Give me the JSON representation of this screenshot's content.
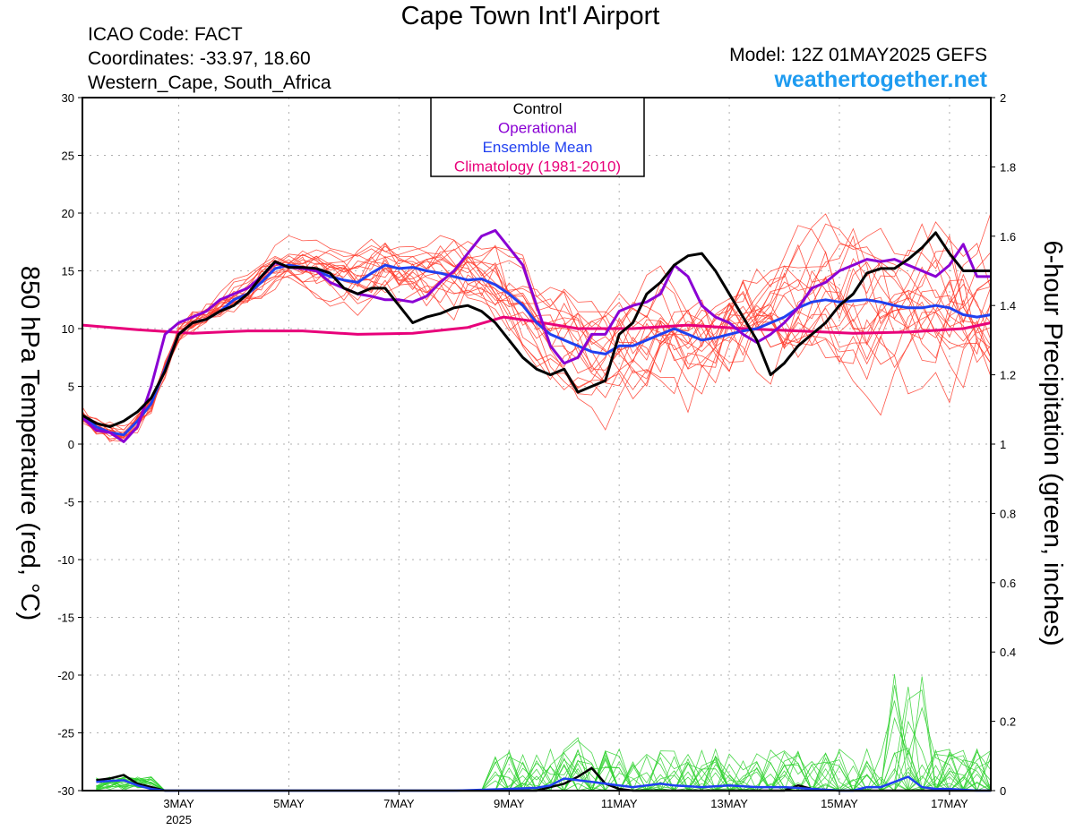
{
  "header": {
    "title": "Cape Town Int'l Airport",
    "icao": "ICAO Code: FACT",
    "coordinates": "Coordinates: -33.97, 18.60",
    "region": "Western_Cape, South_Africa",
    "model": "Model: 12Z 01MAY2025 GEFS",
    "website": "weathertogether.net"
  },
  "chart_data": {
    "type": "line",
    "ylabel": "850 hPa Temperature (red, °C)",
    "y2label": "6-hour Precipitation (green, inches)",
    "ylim": [
      -30,
      30
    ],
    "y2lim": [
      0,
      2
    ],
    "yticks": [
      "30",
      "25",
      "20",
      "15",
      "10",
      "5",
      "0",
      "-5",
      "-10",
      "-15",
      "-20",
      "-25",
      "-30"
    ],
    "y2ticks": [
      "2",
      "1.8",
      "1.6",
      "1.4",
      "1.2",
      "1",
      "0.8",
      "0.6",
      "0.4",
      "0.2",
      "0"
    ],
    "xlim": [
      1.25,
      17.75
    ],
    "xticks": [
      {
        "x": 3,
        "label": "3MAY",
        "sub": "2025"
      },
      {
        "x": 5,
        "label": "5MAY",
        "sub": ""
      },
      {
        "x": 7,
        "label": "7MAY",
        "sub": ""
      },
      {
        "x": 9,
        "label": "9MAY",
        "sub": ""
      },
      {
        "x": 11,
        "label": "11MAY",
        "sub": ""
      },
      {
        "x": 13,
        "label": "13MAY",
        "sub": ""
      },
      {
        "x": 15,
        "label": "15MAY",
        "sub": ""
      },
      {
        "x": 17,
        "label": "17MAY",
        "sub": ""
      }
    ],
    "grid": true,
    "legend": {
      "placement": "top-center",
      "entries": [
        {
          "label": "Control",
          "color": "#000000"
        },
        {
          "label": "Operational",
          "color": "#8a00d4"
        },
        {
          "label": "Ensemble Mean",
          "color": "#2040f0"
        },
        {
          "label": "Climatology (1981-2010)",
          "color": "#e8007a"
        }
      ]
    },
    "series": [
      {
        "name": "Climatology (1981-2010)",
        "color": "#e8007a",
        "axis": "temp",
        "x": [
          1.25,
          2.25,
          3.25,
          4.25,
          5.25,
          6.25,
          7.25,
          8.25,
          8.9,
          9.5,
          10.25,
          11.25,
          12.25,
          13.25,
          14.25,
          15.25,
          16.25,
          17.25,
          17.75
        ],
        "values": [
          10.3,
          9.9,
          9.6,
          9.8,
          9.8,
          9.5,
          9.6,
          10.1,
          11.0,
          10.6,
          10.0,
          10.0,
          10.3,
          10.0,
          9.8,
          9.6,
          9.7,
          10.0,
          10.5
        ]
      },
      {
        "name": "Ensemble Mean",
        "color": "#2040f0",
        "axis": "temp",
        "x": [
          1.25,
          1.5,
          1.75,
          2.0,
          2.25,
          2.5,
          2.75,
          3.0,
          3.25,
          3.5,
          3.75,
          4.0,
          4.25,
          4.5,
          4.75,
          5.0,
          5.25,
          5.5,
          5.75,
          6.0,
          6.25,
          6.5,
          6.75,
          7.0,
          7.25,
          7.5,
          7.75,
          8.0,
          8.25,
          8.5,
          8.75,
          9.0,
          9.25,
          9.5,
          9.75,
          10.0,
          10.25,
          10.5,
          10.75,
          11.0,
          11.25,
          11.5,
          11.75,
          12.0,
          12.25,
          12.5,
          12.75,
          13.0,
          13.25,
          13.5,
          13.75,
          14.0,
          14.25,
          14.5,
          14.75,
          15.0,
          15.25,
          15.5,
          15.75,
          16.0,
          16.25,
          16.5,
          16.75,
          17.0,
          17.25,
          17.5,
          17.75
        ],
        "values": [
          2.5,
          1.5,
          1.0,
          0.8,
          2.0,
          3.5,
          6.5,
          9.5,
          10.5,
          10.8,
          11.5,
          12.5,
          13.0,
          14.0,
          15.2,
          15.5,
          15.3,
          15.0,
          14.5,
          14.2,
          14.0,
          14.8,
          15.5,
          15.2,
          15.3,
          15.0,
          14.8,
          14.5,
          14.2,
          14.3,
          13.8,
          13.0,
          12.0,
          10.5,
          9.5,
          9.0,
          8.5,
          8.0,
          7.8,
          8.5,
          8.5,
          9.0,
          9.5,
          10.0,
          9.5,
          9.0,
          9.2,
          9.5,
          9.8,
          10.0,
          10.5,
          11.0,
          11.8,
          12.3,
          12.5,
          12.3,
          12.4,
          12.5,
          12.3,
          12.0,
          11.8,
          11.8,
          12.0,
          11.8,
          11.2,
          11.0,
          11.2
        ]
      },
      {
        "name": "Operational",
        "color": "#8a00d4",
        "axis": "temp",
        "x": [
          1.25,
          1.5,
          1.75,
          2.0,
          2.25,
          2.5,
          2.75,
          3.0,
          3.25,
          3.5,
          3.75,
          4.0,
          4.25,
          4.5,
          4.75,
          5.0,
          5.25,
          5.5,
          5.75,
          6.0,
          6.25,
          6.5,
          6.75,
          7.0,
          7.25,
          7.5,
          7.75,
          8.0,
          8.25,
          8.5,
          8.75,
          9.0,
          9.25,
          9.5,
          9.75,
          10.0,
          10.25,
          10.5,
          10.75,
          11.0,
          11.25,
          11.5,
          11.75,
          12.0,
          12.25,
          12.5,
          12.75,
          13.0,
          13.25,
          13.5,
          13.75,
          14.0,
          14.25,
          14.5,
          14.75,
          15.0,
          15.25,
          15.5,
          15.75,
          16.0,
          16.25,
          16.5,
          16.75,
          17.0,
          17.25,
          17.5,
          17.75
        ],
        "values": [
          2.3,
          1.2,
          1.0,
          0.2,
          1.5,
          5.0,
          9.5,
          10.5,
          11.0,
          11.5,
          12.5,
          13.0,
          13.5,
          14.5,
          15.7,
          15.3,
          15.2,
          15.0,
          14.0,
          13.5,
          13.0,
          12.8,
          12.5,
          12.5,
          12.3,
          12.8,
          14.0,
          15.0,
          16.5,
          18.0,
          18.5,
          17.0,
          15.5,
          12.0,
          8.5,
          7.0,
          7.5,
          9.5,
          9.5,
          11.5,
          12.0,
          12.3,
          13.0,
          15.5,
          14.5,
          12.0,
          11.0,
          10.5,
          9.5,
          8.8,
          9.5,
          10.5,
          11.8,
          13.5,
          14.0,
          15.0,
          15.5,
          16.0,
          15.8,
          16.0,
          15.5,
          15.0,
          14.5,
          15.5,
          17.3,
          14.5,
          14.5
        ]
      },
      {
        "name": "Control",
        "color": "#000000",
        "axis": "temp",
        "x": [
          1.25,
          1.5,
          1.75,
          2.0,
          2.25,
          2.5,
          2.75,
          3.0,
          3.25,
          3.5,
          3.75,
          4.0,
          4.25,
          4.5,
          4.75,
          5.0,
          5.25,
          5.5,
          5.75,
          6.0,
          6.25,
          6.5,
          6.75,
          7.0,
          7.25,
          7.5,
          7.75,
          8.0,
          8.25,
          8.5,
          8.75,
          9.0,
          9.25,
          9.5,
          9.75,
          10.0,
          10.25,
          10.5,
          10.75,
          11.0,
          11.25,
          11.5,
          11.75,
          12.0,
          12.25,
          12.5,
          12.75,
          13.0,
          13.25,
          13.5,
          13.75,
          14.0,
          14.25,
          14.5,
          14.75,
          15.0,
          15.25,
          15.5,
          15.75,
          16.0,
          16.25,
          16.5,
          16.75,
          17.0,
          17.25,
          17.5,
          17.75
        ],
        "values": [
          2.5,
          1.8,
          1.5,
          2.0,
          2.8,
          4.0,
          6.3,
          9.5,
          10.5,
          10.8,
          11.5,
          12.0,
          13.0,
          14.5,
          15.8,
          15.3,
          15.3,
          15.2,
          14.8,
          13.5,
          13.0,
          13.5,
          13.5,
          12.0,
          10.5,
          11.0,
          11.3,
          11.8,
          12.0,
          11.5,
          10.5,
          9.0,
          7.5,
          6.5,
          6.0,
          6.5,
          4.5,
          5.0,
          5.5,
          9.5,
          10.5,
          13.0,
          14.0,
          15.5,
          16.3,
          16.5,
          15.0,
          13.0,
          11.0,
          9.0,
          6.0,
          7.0,
          8.5,
          9.5,
          10.5,
          12.0,
          13.0,
          14.8,
          15.2,
          15.2,
          16.0,
          17.0,
          18.3,
          16.5,
          15.0,
          15.0,
          15.0
        ]
      },
      {
        "name": "",
        "color": "#000000",
        "axis": "precip",
        "x": [
          1.5,
          1.75,
          2.0,
          2.25,
          2.5,
          2.75,
          3.0,
          3.5,
          4.0,
          5.0,
          6.0,
          7.0,
          8.0,
          9.0,
          9.5,
          9.75,
          10.0,
          10.25,
          10.5,
          10.75,
          11.0,
          11.25,
          11.5,
          12.0,
          12.5,
          13.0,
          13.5,
          14.0,
          14.25,
          14.5,
          15.0,
          16.0,
          17.0,
          17.75
        ],
        "values": [
          0.03,
          0.035,
          0.045,
          0.02,
          0.01,
          0.0,
          0.0,
          0.0,
          0.0,
          0.0,
          0.0,
          0.0,
          0.0,
          0.0,
          0.0,
          0.01,
          0.02,
          0.04,
          0.065,
          0.02,
          0.005,
          0.0,
          0.0,
          0.0,
          0.0,
          0.0,
          0.0,
          0.0,
          0.015,
          0.005,
          0.0,
          0.0,
          0.0,
          0.0
        ]
      },
      {
        "name": "",
        "color": "#2040f0",
        "axis": "precip",
        "x": [
          1.5,
          1.75,
          2.0,
          2.25,
          2.5,
          2.75,
          3.0,
          4.0,
          5.0,
          6.0,
          7.0,
          8.0,
          9.0,
          9.5,
          9.75,
          10.0,
          10.25,
          10.5,
          10.75,
          11.0,
          11.25,
          11.5,
          11.75,
          12.0,
          12.5,
          13.0,
          13.5,
          14.0,
          14.5,
          15.0,
          15.25,
          15.5,
          15.75,
          16.0,
          16.25,
          16.5,
          16.75,
          17.0,
          17.5,
          17.75
        ],
        "values": [
          0.025,
          0.028,
          0.03,
          0.015,
          0.005,
          0.0,
          0.0,
          0.0,
          0.0,
          0.0,
          0.0,
          0.0,
          0.005,
          0.008,
          0.015,
          0.035,
          0.03,
          0.025,
          0.02,
          0.015,
          0.01,
          0.015,
          0.02,
          0.015,
          0.01,
          0.015,
          0.01,
          0.01,
          0.005,
          0.0,
          0.0,
          0.01,
          0.01,
          0.025,
          0.04,
          0.01,
          0.005,
          0.005,
          0.0,
          0.0
        ]
      }
    ]
  }
}
